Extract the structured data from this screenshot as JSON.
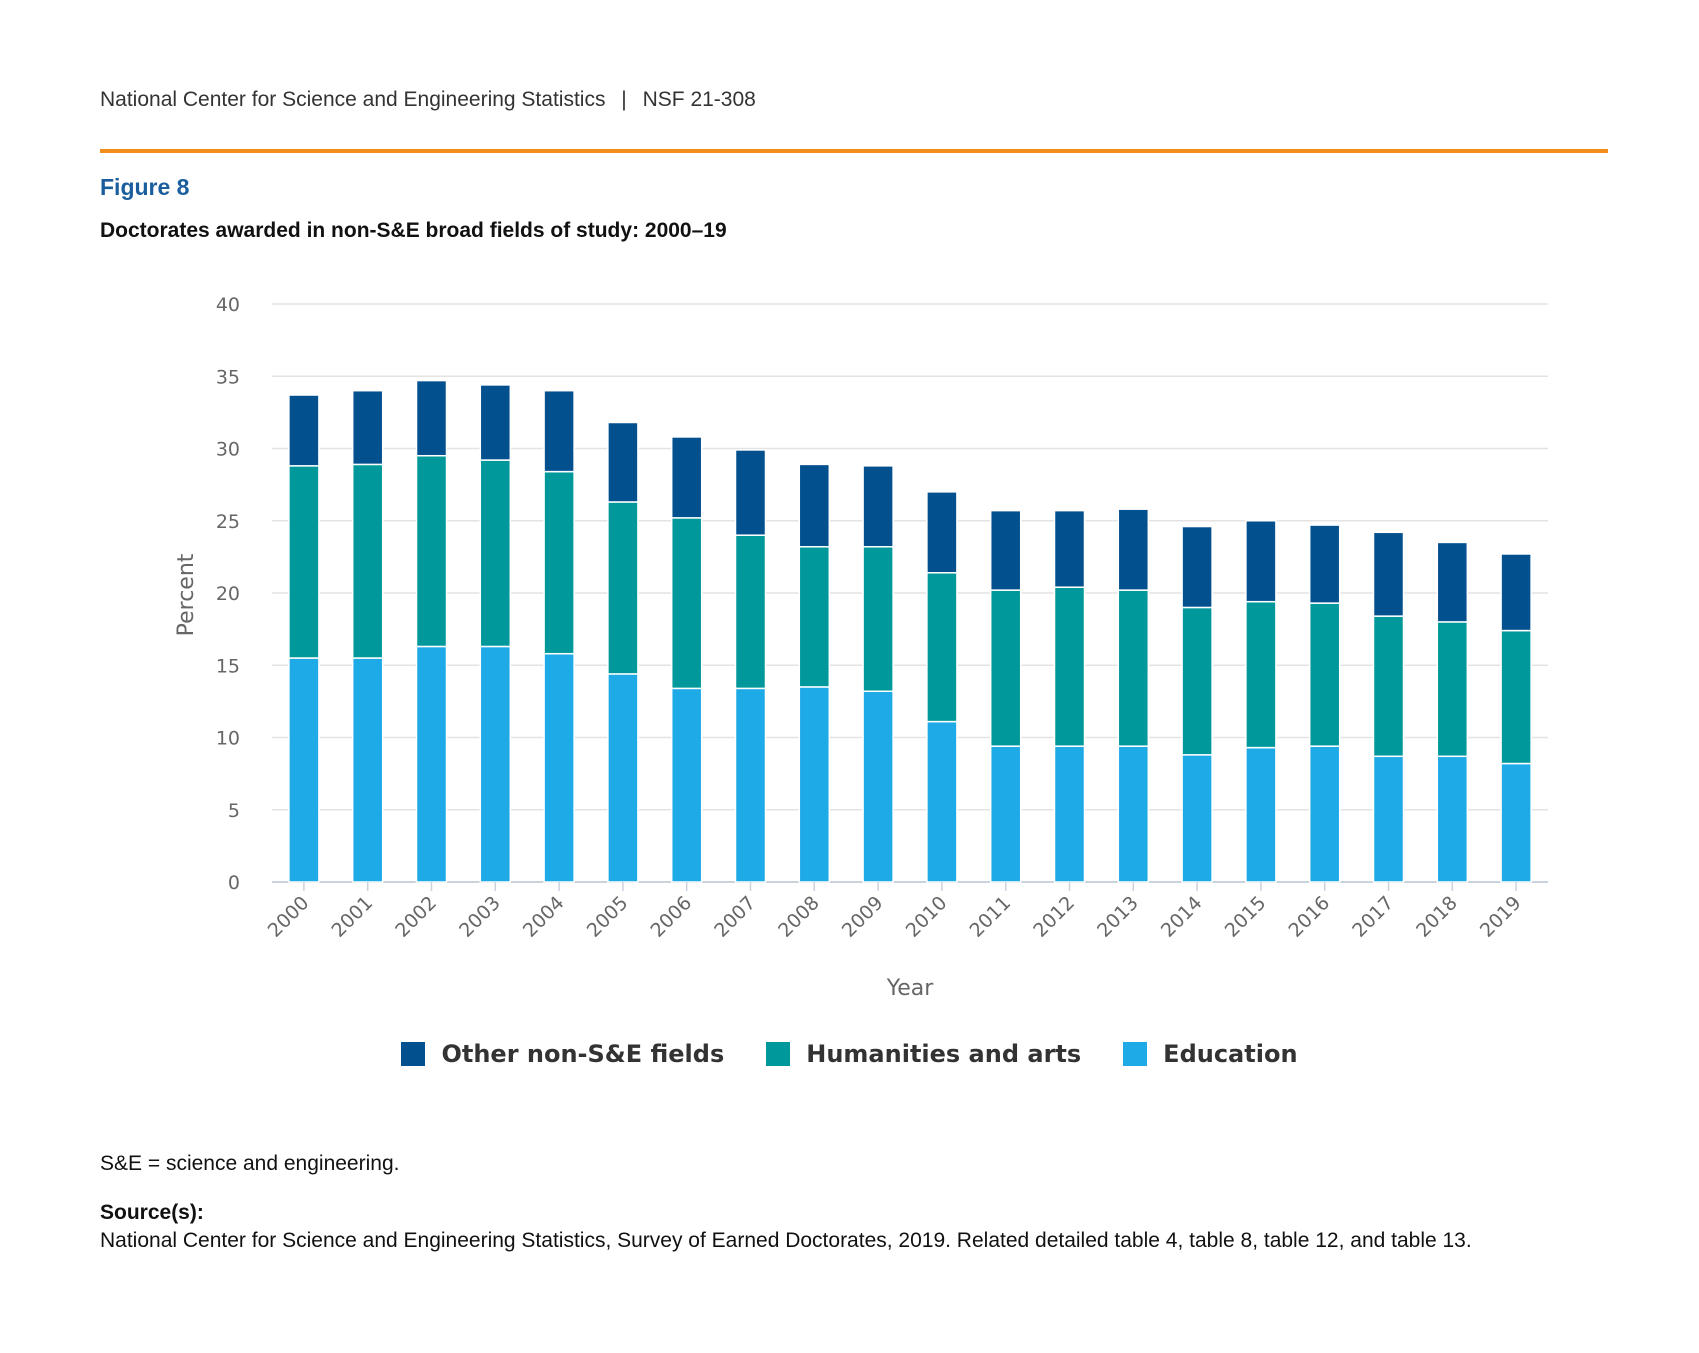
{
  "header": {
    "publisher": "National Center for Science and Engineering Statistics",
    "separator": "|",
    "report_id": "NSF 21-308"
  },
  "figure": {
    "label": "Figure 8",
    "title": "Doctorates awarded in non-S&E broad fields of study: 2000–19"
  },
  "colors": {
    "accent_rule": "#F28C1B",
    "figure_label": "#1B5E9E",
    "other": "#03508F",
    "humanities": "#00989A",
    "education": "#1EAAE7",
    "grid": "#E3E3E3"
  },
  "chart_data": {
    "type": "bar",
    "stacked": true,
    "xlabel": "Year",
    "ylabel": "Percent",
    "ylim": [
      0,
      40
    ],
    "yticks": [
      0,
      5,
      10,
      15,
      20,
      25,
      30,
      35,
      40
    ],
    "grid": true,
    "legend_position": "bottom",
    "categories": [
      "2000",
      "2001",
      "2002",
      "2003",
      "2004",
      "2005",
      "2006",
      "2007",
      "2008",
      "2009",
      "2010",
      "2011",
      "2012",
      "2013",
      "2014",
      "2015",
      "2016",
      "2017",
      "2018",
      "2019"
    ],
    "series": [
      {
        "name": "Education",
        "color": "#1EAAE7",
        "values": [
          15.5,
          15.5,
          16.3,
          16.3,
          15.8,
          14.4,
          13.4,
          13.4,
          13.5,
          13.2,
          11.1,
          9.4,
          9.4,
          9.4,
          8.8,
          9.3,
          9.4,
          8.7,
          8.7,
          8.2
        ]
      },
      {
        "name": "Humanities and arts",
        "color": "#00989A",
        "values": [
          13.3,
          13.4,
          13.2,
          12.9,
          12.6,
          11.9,
          11.8,
          10.6,
          9.7,
          10.0,
          10.3,
          10.8,
          11.0,
          10.8,
          10.2,
          10.1,
          9.9,
          9.7,
          9.3,
          9.2
        ]
      },
      {
        "name": "Other non-S&E fields",
        "color": "#03508F",
        "values": [
          4.9,
          5.1,
          5.2,
          5.2,
          5.6,
          5.5,
          5.6,
          5.9,
          5.7,
          5.6,
          5.6,
          5.5,
          5.3,
          5.6,
          5.6,
          5.6,
          5.4,
          5.8,
          5.5,
          5.3
        ]
      }
    ],
    "legend_order": [
      "Other non-S&E fields",
      "Humanities and arts",
      "Education"
    ]
  },
  "notes": {
    "abbreviation": "S&E = science and engineering.",
    "source_label": "Source(s):",
    "source_text": "National Center for Science and Engineering Statistics, Survey of Earned Doctorates, 2019. Related detailed table 4, table 8, table 12, and table 13."
  }
}
